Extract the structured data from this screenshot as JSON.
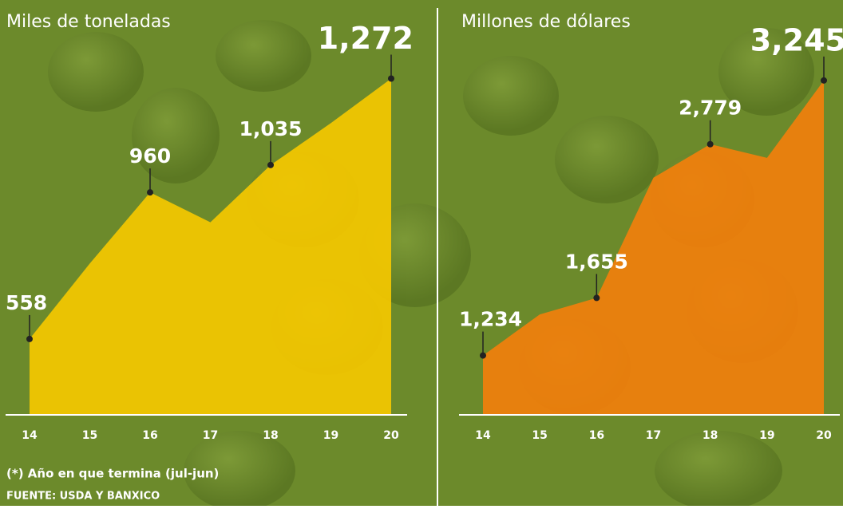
{
  "chart_data": [
    {
      "type": "area",
      "title": "Miles de toneladas",
      "categories": [
        "14",
        "15",
        "16",
        "17",
        "18",
        "19",
        "20"
      ],
      "values": [
        558,
        765,
        960,
        878,
        1035,
        1150,
        1272
      ],
      "value_labels": [
        "558",
        null,
        "960",
        null,
        "1,035",
        null,
        "1,272"
      ],
      "color": "#f5c800",
      "ylim": [
        350,
        1400
      ]
    },
    {
      "type": "area",
      "title": "Millones de dólares",
      "categories": [
        "14",
        "15",
        "16",
        "17",
        "18",
        "19",
        "20"
      ],
      "values": [
        1234,
        1534,
        1655,
        2534,
        2779,
        2679,
        3245
      ],
      "value_labels": [
        "1,234",
        null,
        "1,655",
        null,
        "2,779",
        null,
        "3,245"
      ],
      "color": "#f27f0c",
      "ylim": [
        800,
        3600
      ]
    }
  ],
  "notes": {
    "footnote": "(*) Año en que termina (jul-jun)",
    "source": "FUENTE: USDA Y BANXICO"
  }
}
